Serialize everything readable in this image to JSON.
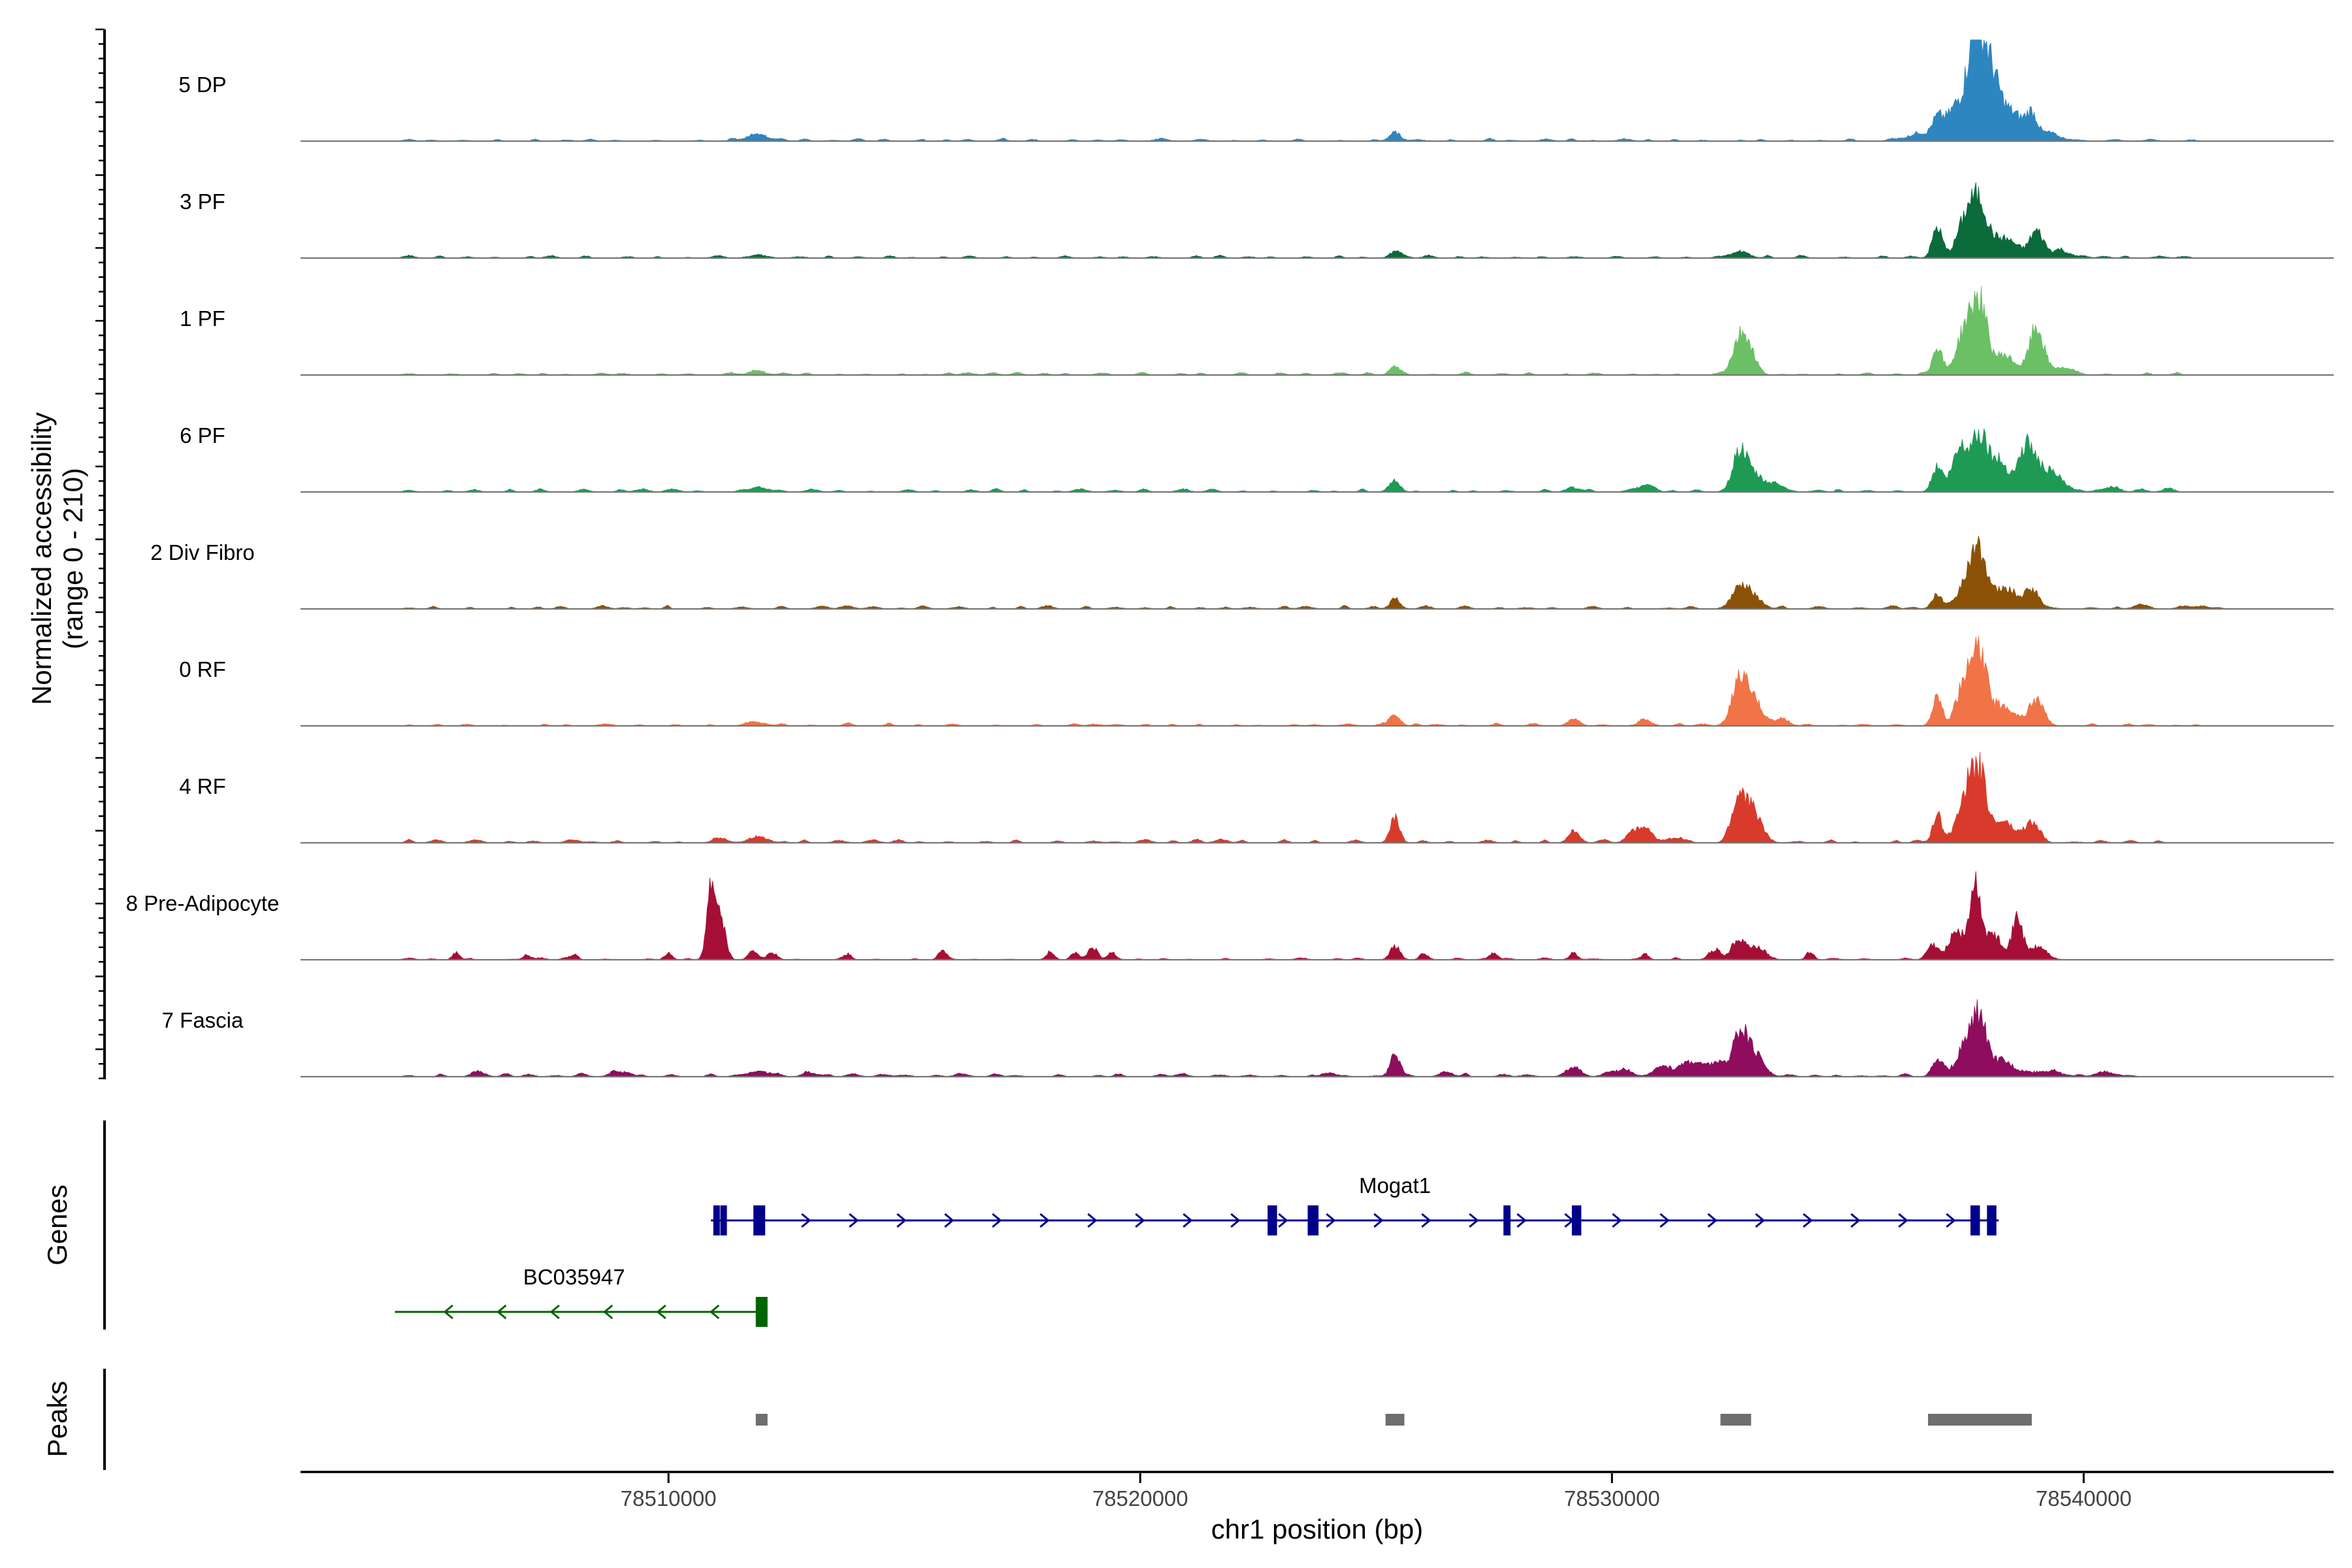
{
  "chart_data": {
    "type": "area",
    "title": "",
    "ylabel_line1": "Normalized accessibility",
    "ylabel_line2": "(range 0 - 210)",
    "ylim": [
      0,
      210
    ],
    "xlabel": "chr1 position (bp)",
    "xlim": [
      78502200,
      78545300
    ],
    "xticks": [
      78510000,
      78520000,
      78530000,
      78540000
    ],
    "xtick_labels": [
      "78510000",
      "78520000",
      "78530000",
      "78540000"
    ],
    "tracks": [
      {
        "name": "5 DP",
        "color": "#2E86C1",
        "peaks": [
          [
            78511900,
            12,
            250
          ],
          [
            78525400,
            18,
            120
          ],
          [
            78536900,
            40,
            120
          ],
          [
            78537300,
            70,
            200
          ],
          [
            78537700,
            210,
            160
          ],
          [
            78538000,
            120,
            180
          ],
          [
            78538400,
            60,
            300
          ],
          [
            78538900,
            45,
            120
          ],
          [
            78539300,
            12,
            250
          ],
          [
            78536500,
            15,
            250
          ]
        ],
        "noise": [
          78504500,
          78543000,
          4
        ]
      },
      {
        "name": "3 PF",
        "color": "#0B6B3A",
        "peaks": [
          [
            78511900,
            6,
            200
          ],
          [
            78525400,
            12,
            120
          ],
          [
            78532700,
            12,
            200
          ],
          [
            78536900,
            60,
            110
          ],
          [
            78537500,
            80,
            180
          ],
          [
            78537800,
            100,
            160
          ],
          [
            78538300,
            40,
            250
          ],
          [
            78539000,
            55,
            150
          ],
          [
            78539500,
            15,
            200
          ]
        ],
        "noise": [
          78504500,
          78542500,
          4
        ]
      },
      {
        "name": "1 PF",
        "color": "#6BC065",
        "peaks": [
          [
            78511900,
            6,
            200
          ],
          [
            78525400,
            18,
            110
          ],
          [
            78532700,
            60,
            160
          ],
          [
            78532900,
            45,
            160
          ],
          [
            78536900,
            60,
            100
          ],
          [
            78537500,
            95,
            180
          ],
          [
            78537800,
            130,
            150
          ],
          [
            78538300,
            40,
            250
          ],
          [
            78539000,
            95,
            150
          ],
          [
            78539500,
            15,
            200
          ]
        ],
        "noise": [
          78504500,
          78542500,
          4
        ]
      },
      {
        "name": "6 PF",
        "color": "#1E9A55",
        "peaks": [
          [
            78511900,
            10,
            200
          ],
          [
            78525400,
            22,
            110
          ],
          [
            78529200,
            8,
            150
          ],
          [
            78530700,
            12,
            150
          ],
          [
            78532700,
            75,
            150
          ],
          [
            78533000,
            35,
            200
          ],
          [
            78533500,
            12,
            200
          ],
          [
            78536900,
            50,
            110
          ],
          [
            78537400,
            90,
            180
          ],
          [
            78537800,
            110,
            160
          ],
          [
            78538200,
            60,
            200
          ],
          [
            78538800,
            95,
            180
          ],
          [
            78539300,
            40,
            250
          ],
          [
            78540500,
            8,
            200
          ],
          [
            78541800,
            8,
            120
          ]
        ],
        "noise": [
          78504500,
          78542000,
          5
        ]
      },
      {
        "name": "2 Div Fibro",
        "color": "#8B5207",
        "peaks": [
          [
            78525400,
            18,
            110
          ],
          [
            78532700,
            40,
            150
          ],
          [
            78533000,
            25,
            180
          ],
          [
            78536900,
            30,
            110
          ],
          [
            78537500,
            60,
            150
          ],
          [
            78537800,
            110,
            150
          ],
          [
            78538300,
            40,
            250
          ],
          [
            78538900,
            40,
            150
          ],
          [
            78541200,
            8,
            150
          ],
          [
            78542500,
            6,
            150
          ]
        ],
        "noise": [
          78504500,
          78543000,
          5
        ]
      },
      {
        "name": "0 RF",
        "color": "#F07448",
        "peaks": [
          [
            78511900,
            6,
            200
          ],
          [
            78525400,
            25,
            110
          ],
          [
            78529200,
            10,
            120
          ],
          [
            78530700,
            10,
            150
          ],
          [
            78532700,
            85,
            160
          ],
          [
            78533000,
            50,
            200
          ],
          [
            78533600,
            12,
            150
          ],
          [
            78536900,
            60,
            100
          ],
          [
            78537500,
            90,
            180
          ],
          [
            78537800,
            130,
            150
          ],
          [
            78538300,
            40,
            250
          ],
          [
            78539000,
            55,
            150
          ]
        ],
        "noise": [
          78504500,
          78542500,
          4
        ]
      },
      {
        "name": "4 RF",
        "color": "#D83B2B",
        "peaks": [
          [
            78511100,
            10,
            150
          ],
          [
            78511900,
            12,
            200
          ],
          [
            78525400,
            50,
            100
          ],
          [
            78529200,
            22,
            120
          ],
          [
            78530400,
            18,
            120
          ],
          [
            78530700,
            30,
            150
          ],
          [
            78531400,
            10,
            150
          ],
          [
            78532700,
            90,
            150
          ],
          [
            78533000,
            60,
            180
          ],
          [
            78536900,
            50,
            100
          ],
          [
            78537500,
            100,
            180
          ],
          [
            78537800,
            125,
            150
          ],
          [
            78538300,
            40,
            250
          ],
          [
            78538900,
            40,
            150
          ]
        ],
        "noise": [
          78504500,
          78542000,
          5
        ]
      },
      {
        "name": "8 Pre-Adipocyte",
        "color": "#A50F36",
        "peaks": [
          [
            78505500,
            15,
            80
          ],
          [
            78507000,
            10,
            80
          ],
          [
            78508000,
            12,
            80
          ],
          [
            78510000,
            15,
            80
          ],
          [
            78510900,
            150,
            90
          ],
          [
            78511100,
            90,
            100
          ],
          [
            78511800,
            15,
            100
          ],
          [
            78512200,
            15,
            100
          ],
          [
            78513800,
            12,
            80
          ],
          [
            78515800,
            18,
            80
          ],
          [
            78518100,
            15,
            80
          ],
          [
            78518600,
            12,
            80
          ],
          [
            78519000,
            25,
            100
          ],
          [
            78519400,
            15,
            80
          ],
          [
            78525400,
            25,
            100
          ],
          [
            78526000,
            12,
            80
          ],
          [
            78527500,
            15,
            80
          ],
          [
            78529200,
            12,
            80
          ],
          [
            78530700,
            12,
            80
          ],
          [
            78532200,
            20,
            120
          ],
          [
            78532700,
            45,
            150
          ],
          [
            78533100,
            25,
            150
          ],
          [
            78534200,
            15,
            80
          ],
          [
            78536800,
            30,
            120
          ],
          [
            78537300,
            60,
            150
          ],
          [
            78537700,
            145,
            120
          ],
          [
            78538100,
            50,
            200
          ],
          [
            78538600,
            85,
            100
          ],
          [
            78539000,
            25,
            200
          ]
        ],
        "noise": [
          78504500,
          78540000,
          3
        ]
      },
      {
        "name": "7 Fascia",
        "color": "#8E0D5E",
        "peaks": [
          [
            78506000,
            6,
            150
          ],
          [
            78509000,
            10,
            200
          ],
          [
            78511900,
            12,
            200
          ],
          [
            78513000,
            8,
            150
          ],
          [
            78524000,
            8,
            150
          ],
          [
            78525400,
            45,
            100
          ],
          [
            78526500,
            8,
            150
          ],
          [
            78529200,
            20,
            150
          ],
          [
            78530200,
            12,
            200
          ],
          [
            78531100,
            20,
            200
          ],
          [
            78531700,
            30,
            200
          ],
          [
            78532200,
            25,
            200
          ],
          [
            78532700,
            85,
            150
          ],
          [
            78533000,
            45,
            200
          ],
          [
            78536900,
            30,
            120
          ],
          [
            78537500,
            60,
            200
          ],
          [
            78537800,
            105,
            150
          ],
          [
            78538300,
            30,
            250
          ],
          [
            78539200,
            12,
            300
          ],
          [
            78540500,
            8,
            200
          ]
        ],
        "noise": [
          78504500,
          78541500,
          5
        ]
      }
    ],
    "genes": [
      {
        "name": "Mogat1",
        "color": "#00008B",
        "strand": "+",
        "start": 78510900,
        "end": 78538200,
        "exons": [
          [
            78510950,
            78511050
          ],
          [
            78511100,
            78511200
          ],
          [
            78511800,
            78512050
          ],
          [
            78522700,
            78522900
          ],
          [
            78523550,
            78523780
          ],
          [
            78527700,
            78527850
          ],
          [
            78529150,
            78529350
          ],
          [
            78537600,
            78537800
          ],
          [
            78537950,
            78538150
          ]
        ]
      },
      {
        "name": "BC035947",
        "color": "#006400",
        "strand": "-",
        "start": 78504200,
        "end": 78512100,
        "exons": [
          [
            78511850,
            78512100
          ]
        ]
      }
    ],
    "peak_regions": [
      [
        78511850,
        78512100
      ],
      [
        78525200,
        78525600
      ],
      [
        78532300,
        78532950
      ],
      [
        78536700,
        78538900
      ]
    ],
    "section_labels": {
      "genes": "Genes",
      "peaks": "Peaks"
    }
  }
}
